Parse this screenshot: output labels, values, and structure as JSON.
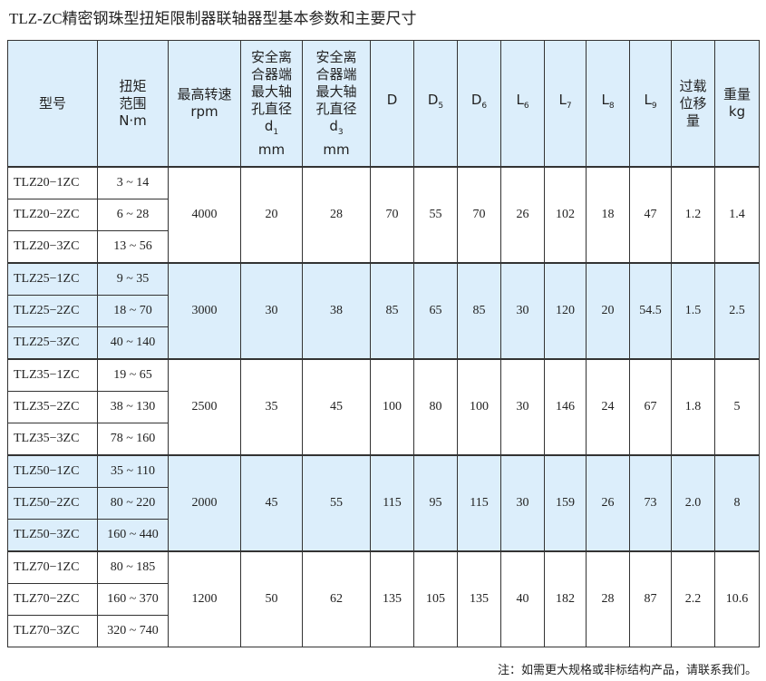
{
  "title": "TLZ-ZC精密钢珠型扭矩限制器联轴器型基本参数和主要尺寸",
  "headers": [
    {
      "lines": [
        "型号"
      ]
    },
    {
      "lines": [
        "扭矩",
        "范围",
        "N·m"
      ]
    },
    {
      "lines": [
        "最高转速",
        "rpm"
      ]
    },
    {
      "lines": [
        "安全离",
        "合器端",
        "最大轴",
        "孔直径"
      ],
      "sym": "d",
      "sub": "1",
      "unit": "mm"
    },
    {
      "lines": [
        "安全离",
        "合器端",
        "最大轴",
        "孔直径"
      ],
      "sym": "d",
      "sub": "3",
      "unit": "mm"
    },
    {
      "sym": "D",
      "sub": ""
    },
    {
      "sym": "D",
      "sub": "5"
    },
    {
      "sym": "D",
      "sub": "6"
    },
    {
      "sym": "L",
      "sub": "6"
    },
    {
      "sym": "L",
      "sub": "7"
    },
    {
      "sym": "L",
      "sub": "8"
    },
    {
      "sym": "L",
      "sub": "9"
    },
    {
      "lines": [
        "过载",
        "位移",
        "量"
      ]
    },
    {
      "lines": [
        "重量",
        "kg"
      ]
    }
  ],
  "groups": [
    {
      "rows": [
        [
          "TLZ20−1ZC",
          "3 ~ 14"
        ],
        [
          "TLZ20−2ZC",
          "6 ~ 28"
        ],
        [
          "TLZ20−3ZC",
          "13 ~ 56"
        ]
      ],
      "shared": [
        "4000",
        "20",
        "28",
        "70",
        "55",
        "70",
        "26",
        "102",
        "18",
        "47",
        "1.2",
        "1.4"
      ]
    },
    {
      "rows": [
        [
          "TLZ25−1ZC",
          "9 ~ 35"
        ],
        [
          "TLZ25−2ZC",
          "18 ~ 70"
        ],
        [
          "TLZ25−3ZC",
          "40 ~ 140"
        ]
      ],
      "shared": [
        "3000",
        "30",
        "38",
        "85",
        "65",
        "85",
        "30",
        "120",
        "20",
        "54.5",
        "1.5",
        "2.5"
      ]
    },
    {
      "rows": [
        [
          "TLZ35−1ZC",
          "19 ~ 65"
        ],
        [
          "TLZ35−2ZC",
          "38 ~ 130"
        ],
        [
          "TLZ35−3ZC",
          "78 ~ 160"
        ]
      ],
      "shared": [
        "2500",
        "35",
        "45",
        "100",
        "80",
        "100",
        "30",
        "146",
        "24",
        "67",
        "1.8",
        "5"
      ]
    },
    {
      "rows": [
        [
          "TLZ50−1ZC",
          "35 ~ 110"
        ],
        [
          "TLZ50−2ZC",
          "80 ~ 220"
        ],
        [
          "TLZ50−3ZC",
          "160 ~ 440"
        ]
      ],
      "shared": [
        "2000",
        "45",
        "55",
        "115",
        "95",
        "115",
        "30",
        "159",
        "26",
        "73",
        "2.0",
        "8"
      ]
    },
    {
      "rows": [
        [
          "TLZ70−1ZC",
          "80 ~ 185"
        ],
        [
          "TLZ70−2ZC",
          "160 ~ 370"
        ],
        [
          "TLZ70−3ZC",
          "320 ~ 740"
        ]
      ],
      "shared": [
        "1200",
        "50",
        "62",
        "135",
        "105",
        "135",
        "40",
        "182",
        "28",
        "87",
        "2.2",
        "10.6"
      ]
    }
  ],
  "note": "注：如需更大规格或非标结构产品，请联系我们。",
  "colors": {
    "header_bg": "#dceefb",
    "alt_row_bg": "#dceefb"
  }
}
